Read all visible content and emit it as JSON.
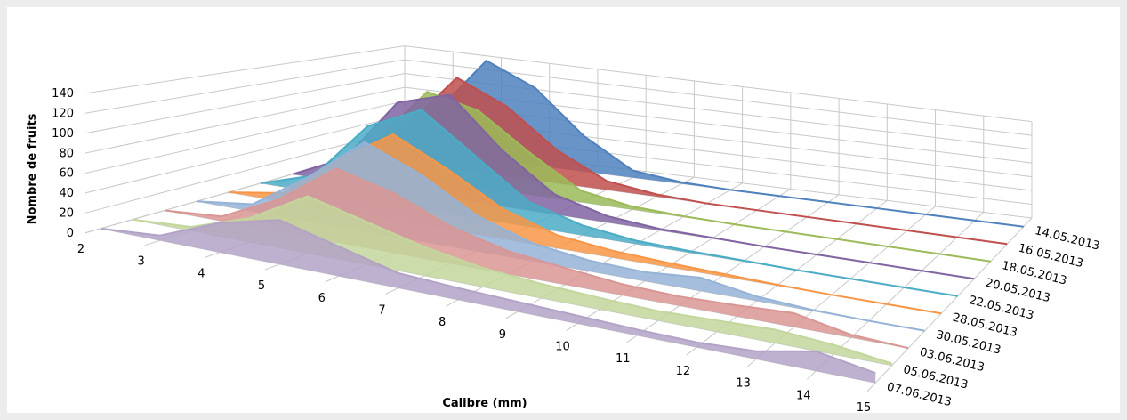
{
  "chart_data": {
    "type": "area3d",
    "x_label": "Calibre (mm)",
    "y_label": "Nombre de fruits",
    "x": [
      2,
      3,
      4,
      5,
      6,
      7,
      8,
      9,
      10,
      11,
      12,
      13,
      14,
      15
    ],
    "xlim": [
      2,
      15
    ],
    "xticks": [
      2,
      3,
      4,
      5,
      6,
      7,
      8,
      9,
      10,
      11,
      12,
      13,
      14,
      15
    ],
    "ylim": [
      0,
      140
    ],
    "yticks": [
      0,
      20,
      40,
      60,
      80,
      100,
      120,
      140
    ],
    "grid": true,
    "series": [
      {
        "name": "14.05.2013",
        "color": "#4f81bd",
        "values": [
          0,
          60,
          140,
          110,
          50,
          10,
          2,
          0,
          0,
          0,
          0,
          0,
          0,
          0
        ]
      },
      {
        "name": "16.05.2013",
        "color": "#c0504d",
        "values": [
          0,
          50,
          125,
          95,
          45,
          12,
          3,
          0,
          0,
          0,
          0,
          0,
          0,
          0
        ]
      },
      {
        "name": "18.05.2013",
        "color": "#9bbb59",
        "values": [
          0,
          40,
          115,
          100,
          55,
          15,
          4,
          1,
          0,
          0,
          0,
          0,
          0,
          0
        ]
      },
      {
        "name": "20.05.2013",
        "color": "#8064a2",
        "values": [
          0,
          30,
          110,
          130,
          70,
          25,
          8,
          2,
          1,
          0,
          0,
          0,
          0,
          0
        ]
      },
      {
        "name": "22.05.2013",
        "color": "#4bacc6",
        "values": [
          0,
          20,
          90,
          120,
          75,
          30,
          12,
          4,
          2,
          1,
          0,
          0,
          0,
          0
        ]
      },
      {
        "name": "28.05.2013",
        "color": "#f79646",
        "values": [
          0,
          10,
          60,
          100,
          70,
          35,
          15,
          8,
          5,
          3,
          1,
          0,
          0,
          0
        ]
      },
      {
        "name": "30.05.2013",
        "color": "#95b3d7",
        "values": [
          0,
          8,
          50,
          100,
          75,
          40,
          20,
          12,
          10,
          15,
          5,
          1,
          0,
          0
        ]
      },
      {
        "name": "03.06.2013",
        "color": "#d99694",
        "values": [
          0,
          5,
          35,
          80,
          65,
          40,
          25,
          18,
          12,
          10,
          12,
          15,
          3,
          0
        ]
      },
      {
        "name": "05.06.2013",
        "color": "#c3d69b",
        "values": [
          0,
          4,
          25,
          60,
          45,
          30,
          20,
          15,
          12,
          10,
          12,
          14,
          10,
          2
        ]
      },
      {
        "name": "07.06.2013",
        "color": "#b3a2c7",
        "values": [
          0,
          5,
          30,
          45,
          30,
          15,
          12,
          10,
          8,
          6,
          5,
          8,
          20,
          10
        ]
      }
    ]
  }
}
